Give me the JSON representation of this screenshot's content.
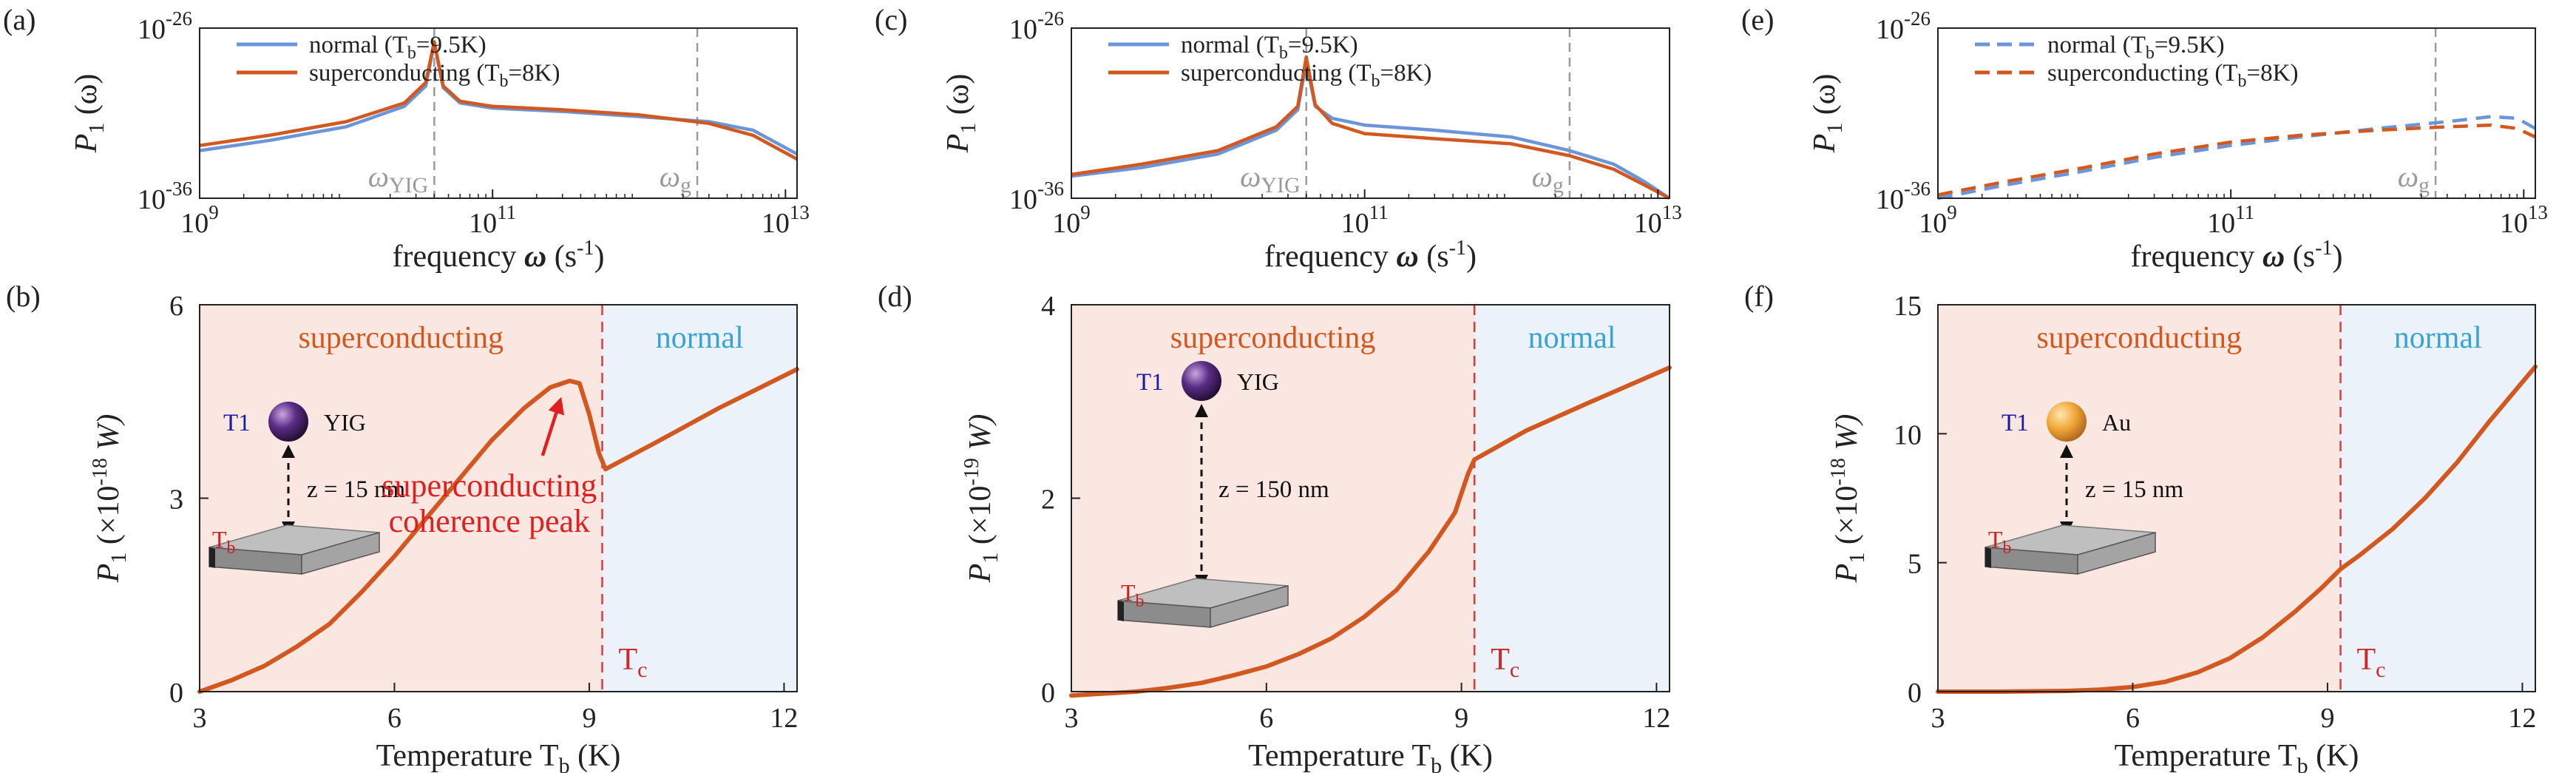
{
  "colors": {
    "normal": "#6b95d9",
    "superconducting": "#d2581f",
    "super_region": "#fbe7e1",
    "normal_region": "#ebf2fa",
    "tc_line": "#d93b3b",
    "super_text": "#d2581f",
    "normal_text": "#3aa3d4",
    "note": "#e02020",
    "vline": "#9a9a9a"
  },
  "chart_data": [
    {
      "id": "a",
      "panel_label": "(a)",
      "type": "line",
      "xscale": "log",
      "xlim": [
        1000000000.0,
        12000000000000.0
      ],
      "yscale": "log",
      "ylim": [
        1e-36,
        1e-26
      ],
      "xlabel_pre": "frequency ",
      "xlabel_bold": "ω",
      "xlabel_post": " (s",
      "xlabel_sup": "-1",
      "xlabel_close": ")",
      "ylabel": "P",
      "ylabel_sub": "1",
      "ylabel_post": " (ω)",
      "xticks": [
        {
          "base": "10",
          "exp": "9",
          "v": 1000000000.0
        },
        {
          "base": "10",
          "exp": "11",
          "v": 100000000000.0
        },
        {
          "base": "10",
          "exp": "13",
          "v": 10000000000000.0
        }
      ],
      "yticks": [
        {
          "base": "10",
          "exp": "-26",
          "v": 1e-26
        },
        {
          "base": "10",
          "exp": "-36",
          "v": 1e-36
        }
      ],
      "vlines": [
        {
          "x": 40000000000.0,
          "label": "ω",
          "sub": "YIG"
        },
        {
          "x": 2500000000000.0,
          "label": "ω",
          "sub": "g"
        }
      ],
      "legend": [
        {
          "text": "normal (T",
          "sub": "b",
          "tail": "=9.5K)",
          "series": "normal"
        },
        {
          "text": "superconducting (T",
          "sub": "b",
          "tail": "=8K)",
          "series": "superconducting"
        }
      ],
      "series": [
        {
          "name": "normal",
          "style": "solid",
          "x": [
            1000000000.0,
            3000000000.0,
            10000000000.0,
            25000000000.0,
            35000000000.0,
            40000000000.0,
            46000000000.0,
            60000000000.0,
            100000000000.0,
            300000000000.0,
            1000000000000.0,
            3000000000000.0,
            6000000000000.0,
            12000000000000.0
          ],
          "y": [
            -33.2,
            -32.6,
            -31.8,
            -30.6,
            -29.4,
            -26.9,
            -29.5,
            -30.4,
            -30.7,
            -30.9,
            -31.2,
            -31.5,
            -32.0,
            -33.4
          ]
        },
        {
          "name": "superconducting",
          "style": "solid",
          "x": [
            1000000000.0,
            3000000000.0,
            10000000000.0,
            25000000000.0,
            35000000000.0,
            40000000000.0,
            46000000000.0,
            60000000000.0,
            100000000000.0,
            300000000000.0,
            1000000000000.0,
            3000000000000.0,
            6000000000000.0,
            12000000000000.0
          ],
          "y": [
            -32.9,
            -32.3,
            -31.5,
            -30.4,
            -29.2,
            -26.8,
            -29.4,
            -30.3,
            -30.6,
            -30.8,
            -31.1,
            -31.6,
            -32.3,
            -33.7
          ]
        }
      ]
    },
    {
      "id": "c",
      "panel_label": "(c)",
      "type": "line",
      "xscale": "log",
      "xlim": [
        1000000000.0,
        12000000000000.0
      ],
      "yscale": "log",
      "ylim": [
        1e-36,
        1e-26
      ],
      "xlabel_pre": "frequency ",
      "xlabel_bold": "ω",
      "xlabel_post": " (s",
      "xlabel_sup": "-1",
      "xlabel_close": ")",
      "ylabel": "P",
      "ylabel_sub": "1",
      "ylabel_post": " (ω)",
      "xticks": [
        {
          "base": "10",
          "exp": "9",
          "v": 1000000000.0
        },
        {
          "base": "10",
          "exp": "11",
          "v": 100000000000.0
        },
        {
          "base": "10",
          "exp": "13",
          "v": 10000000000000.0
        }
      ],
      "yticks": [
        {
          "base": "10",
          "exp": "-26",
          "v": 1e-26
        },
        {
          "base": "10",
          "exp": "-36",
          "v": 1e-36
        }
      ],
      "vlines": [
        {
          "x": 40000000000.0,
          "label": "ω",
          "sub": "YIG"
        },
        {
          "x": 2500000000000.0,
          "label": "ω",
          "sub": "g"
        }
      ],
      "legend": [
        {
          "text": "normal (T",
          "sub": "b",
          "tail": "=9.5K)",
          "series": "normal"
        },
        {
          "text": "superconducting (T",
          "sub": "b",
          "tail": "=8K)",
          "series": "superconducting"
        }
      ],
      "series": [
        {
          "name": "normal",
          "style": "solid",
          "x": [
            1000000000.0,
            3000000000.0,
            10000000000.0,
            25000000000.0,
            35000000000.0,
            40000000000.0,
            46000000000.0,
            60000000000.0,
            100000000000.0,
            300000000000.0,
            1000000000000.0,
            2500000000000.0,
            5000000000000.0,
            8000000000000.0,
            12000000000000.0
          ],
          "y": [
            -34.7,
            -34.2,
            -33.4,
            -32.0,
            -30.8,
            -28.0,
            -30.6,
            -31.3,
            -31.7,
            -32.0,
            -32.4,
            -33.2,
            -34.0,
            -35.0,
            -36.0
          ]
        },
        {
          "name": "superconducting",
          "style": "solid",
          "x": [
            1000000000.0,
            3000000000.0,
            10000000000.0,
            25000000000.0,
            35000000000.0,
            40000000000.0,
            46000000000.0,
            60000000000.0,
            100000000000.0,
            300000000000.0,
            1000000000000.0,
            2500000000000.0,
            5000000000000.0,
            8000000000000.0,
            12000000000000.0
          ],
          "y": [
            -34.6,
            -34.0,
            -33.2,
            -31.8,
            -30.6,
            -27.7,
            -30.5,
            -31.6,
            -32.2,
            -32.5,
            -32.8,
            -33.5,
            -34.3,
            -35.2,
            -36.0
          ]
        }
      ]
    },
    {
      "id": "e",
      "panel_label": "(e)",
      "type": "line",
      "xscale": "log",
      "xlim": [
        1000000000.0,
        12000000000000.0
      ],
      "yscale": "log",
      "ylim": [
        1e-36,
        1e-26
      ],
      "xlabel_pre": "frequency ",
      "xlabel_bold": "ω",
      "xlabel_post": " (s",
      "xlabel_sup": "-1",
      "xlabel_close": ")",
      "ylabel": "P",
      "ylabel_sub": "1",
      "ylabel_post": " (ω)",
      "xticks": [
        {
          "base": "10",
          "exp": "9",
          "v": 1000000000.0
        },
        {
          "base": "10",
          "exp": "11",
          "v": 100000000000.0
        },
        {
          "base": "10",
          "exp": "13",
          "v": 10000000000000.0
        }
      ],
      "yticks": [
        {
          "base": "10",
          "exp": "-26",
          "v": 1e-26
        },
        {
          "base": "10",
          "exp": "-36",
          "v": 1e-36
        }
      ],
      "vlines": [
        {
          "x": 2500000000000.0,
          "label": "ω",
          "sub": "g"
        }
      ],
      "legend": [
        {
          "text": "normal (T",
          "sub": "b",
          "tail": "=9.5K)",
          "series": "normal",
          "dashed": true
        },
        {
          "text": "superconducting (T",
          "sub": "b",
          "tail": "=8K)",
          "series": "superconducting",
          "dashed": true
        }
      ],
      "series": [
        {
          "name": "normal",
          "style": "dashed",
          "x": [
            1000000000.0,
            3000000000.0,
            10000000000.0,
            30000000000.0,
            100000000000.0,
            300000000000.0,
            1000000000000.0,
            3000000000000.0,
            6000000000000.0,
            9000000000000.0,
            12000000000000.0
          ],
          "y": [
            -36.0,
            -35.2,
            -34.4,
            -33.6,
            -32.9,
            -32.4,
            -31.9,
            -31.5,
            -31.2,
            -31.3,
            -31.9
          ]
        },
        {
          "name": "superconducting",
          "style": "dashed",
          "x": [
            1000000000.0,
            3000000000.0,
            10000000000.0,
            30000000000.0,
            100000000000.0,
            300000000000.0,
            1000000000000.0,
            3000000000000.0,
            6000000000000.0,
            9000000000000.0,
            12000000000000.0
          ],
          "y": [
            -35.8,
            -35.0,
            -34.2,
            -33.4,
            -32.7,
            -32.3,
            -32.0,
            -31.8,
            -31.7,
            -31.9,
            -32.4
          ]
        }
      ]
    },
    {
      "id": "b",
      "panel_label": "(b)",
      "type": "line",
      "xlim": [
        3,
        12.2
      ],
      "ylim": [
        0,
        6
      ],
      "tc": 9.2,
      "xlabel_pre": "Temperature T",
      "xlabel_sub": "b",
      "xlabel_post": " (K)",
      "ylabel": "P",
      "ylabel_sub": "1",
      "ylabel_mid": " (×10",
      "ylabel_sup": "-18",
      "ylabel_unit": " W)",
      "xticks": [
        3,
        6,
        9,
        12
      ],
      "yticks": [
        0,
        3,
        6
      ],
      "region_super": "superconducting",
      "region_normal": "normal",
      "tc_label": "T",
      "tc_sub": "c",
      "inset": {
        "t1": "T1",
        "material": "YIG",
        "sphere": "yig",
        "distance": "z = 15 nm",
        "substrate": "T",
        "substrate_sub": "b"
      },
      "annotation": {
        "line1": "superconducting",
        "line2": "coherence peak",
        "target_x": 8.6,
        "target_y": 4.75
      },
      "series": [
        {
          "name": "superconducting",
          "x": [
            3,
            3.5,
            4,
            4.5,
            5,
            5.5,
            6,
            6.5,
            7,
            7.5,
            8,
            8.4,
            8.7,
            8.85,
            9.0,
            9.15,
            9.25,
            10,
            11,
            12.2
          ],
          "y": [
            0,
            0.18,
            0.4,
            0.7,
            1.05,
            1.55,
            2.1,
            2.7,
            3.3,
            3.9,
            4.4,
            4.72,
            4.82,
            4.78,
            4.3,
            3.7,
            3.45,
            3.85,
            4.4,
            5.0
          ]
        }
      ]
    },
    {
      "id": "d",
      "panel_label": "(d)",
      "type": "line",
      "xlim": [
        3,
        12.2
      ],
      "ylim": [
        0,
        4
      ],
      "tc": 9.2,
      "xlabel_pre": "Temperature T",
      "xlabel_sub": "b",
      "xlabel_post": " (K)",
      "ylabel": "P",
      "ylabel_sub": "1",
      "ylabel_mid": " (×10",
      "ylabel_sup": "-19",
      "ylabel_unit": " W)",
      "xticks": [
        3,
        6,
        9,
        12
      ],
      "yticks": [
        0,
        2,
        4
      ],
      "region_super": "superconducting",
      "region_normal": "normal",
      "tc_label": "T",
      "tc_sub": "c",
      "inset": {
        "t1": "T1",
        "material": "YIG",
        "sphere": "yig",
        "distance": "z = 150 nm",
        "substrate": "T",
        "substrate_sub": "b"
      },
      "series": [
        {
          "name": "superconducting",
          "x": [
            3,
            3.5,
            4,
            4.5,
            5,
            5.5,
            6,
            6.5,
            7,
            7.5,
            8,
            8.5,
            8.9,
            9.1,
            9.2,
            10,
            11,
            12.2
          ],
          "y": [
            -0.04,
            -0.02,
            0,
            0.04,
            0.09,
            0.17,
            0.26,
            0.39,
            0.55,
            0.77,
            1.05,
            1.45,
            1.85,
            2.25,
            2.4,
            2.7,
            3.0,
            3.35
          ]
        }
      ]
    },
    {
      "id": "f",
      "panel_label": "(f)",
      "type": "line",
      "xlim": [
        3,
        12.2
      ],
      "ylim": [
        0,
        15
      ],
      "tc": 9.2,
      "xlabel_pre": "Temperature T",
      "xlabel_sub": "b",
      "xlabel_post": " (K)",
      "ylabel": "P",
      "ylabel_sub": "1",
      "ylabel_mid": " (×10",
      "ylabel_sup": "-18",
      "ylabel_unit": " W)",
      "xticks": [
        3,
        6,
        9,
        12
      ],
      "yticks": [
        0,
        5,
        10,
        15
      ],
      "region_super": "superconducting",
      "region_normal": "normal",
      "tc_label": "T",
      "tc_sub": "c",
      "inset": {
        "t1": "T1",
        "material": "Au",
        "sphere": "au",
        "distance": "z = 15 nm",
        "substrate": "T",
        "substrate_sub": "b"
      },
      "series": [
        {
          "name": "superconducting",
          "x": [
            3,
            4,
            5,
            5.5,
            6,
            6.5,
            7,
            7.5,
            8,
            8.5,
            8.9,
            9.2,
            9.5,
            10,
            10.5,
            11,
            11.5,
            12.2
          ],
          "y": [
            0,
            0,
            0.03,
            0.08,
            0.18,
            0.38,
            0.75,
            1.3,
            2.1,
            3.1,
            4.0,
            4.75,
            5.3,
            6.3,
            7.5,
            8.9,
            10.5,
            12.6
          ]
        }
      ]
    }
  ]
}
